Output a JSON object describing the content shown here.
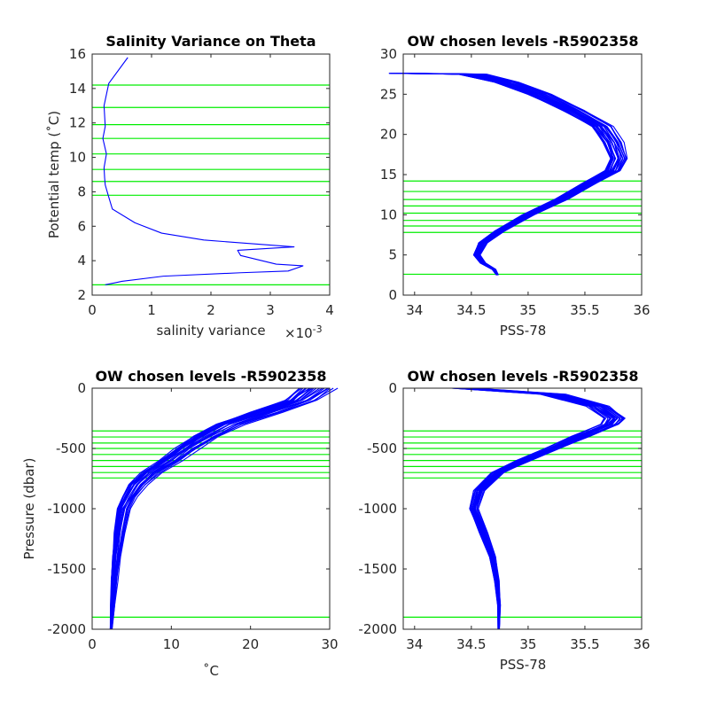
{
  "chart_data": [
    {
      "type": "line",
      "title": "Salinity Variance on Theta",
      "xlabel": "salinity variance",
      "x_exponent_label": "×10",
      "x_exponent": "-3",
      "ylabel": "Potential temp (˚C)",
      "xlim": [
        0,
        0.004
      ],
      "ylim": [
        2,
        16
      ],
      "x_ticks": [
        0,
        0.001,
        0.002,
        0.003,
        0.004
      ],
      "x_tick_labels": [
        "0",
        "1",
        "2",
        "3",
        "4"
      ],
      "y_ticks": [
        2,
        4,
        6,
        8,
        10,
        12,
        14,
        16
      ],
      "y_tick_labels": [
        "2",
        "4",
        "6",
        "8",
        "10",
        "12",
        "14",
        "16"
      ],
      "grid": false,
      "series": [
        {
          "color": "#0000ff",
          "x": [
            0.0006,
            0.00028,
            0.0002,
            0.00022,
            0.00018,
            0.00024,
            0.0002,
            0.00021,
            0.00022,
            0.00027,
            0.00034,
            0.00072,
            0.00117,
            0.00188,
            0.0034,
            0.00245,
            0.0025,
            0.0031,
            0.00355,
            0.0033,
            0.0025,
            0.0012,
            0.0005,
            0.00022
          ],
          "y": [
            15.8,
            14.3,
            13.0,
            11.8,
            11.1,
            10.2,
            9.4,
            8.8,
            8.4,
            7.8,
            7.0,
            6.2,
            5.6,
            5.2,
            4.8,
            4.6,
            4.3,
            3.8,
            3.7,
            3.4,
            3.3,
            3.1,
            2.8,
            2.6
          ]
        }
      ],
      "levels": [
        14.2,
        12.9,
        11.9,
        11.1,
        10.2,
        9.3,
        8.6,
        7.8,
        2.6
      ]
    },
    {
      "type": "line",
      "title": "OW chosen levels -R5902358",
      "xlabel": "PSS-78",
      "ylabel": "",
      "xlim": [
        33.9,
        36.0
      ],
      "ylim": [
        0,
        30
      ],
      "x_ticks": [
        34,
        34.5,
        35,
        35.5,
        36
      ],
      "x_tick_labels": [
        "34",
        "34.5",
        "35",
        "35.5",
        "36"
      ],
      "y_ticks": [
        0,
        5,
        10,
        15,
        20,
        25,
        30
      ],
      "y_tick_labels": [
        "0",
        "5",
        "10",
        "15",
        "20",
        "25",
        "30"
      ],
      "grid": false,
      "series": [
        {
          "color": "#0000ff",
          "x": [
            33.9,
            34.5,
            34.8,
            35.1,
            35.4,
            35.65,
            35.75,
            35.8,
            35.75,
            35.55,
            35.3,
            35.0,
            34.75,
            34.6,
            34.55,
            34.6,
            34.7,
            34.73
          ],
          "y": [
            27.6,
            27.5,
            26.5,
            25.0,
            23.0,
            21.0,
            19.0,
            17.0,
            15.5,
            14.0,
            12.0,
            10.0,
            8.0,
            6.5,
            5.0,
            4.0,
            3.2,
            2.5
          ]
        }
      ],
      "levels": [
        14.2,
        12.9,
        11.9,
        11.1,
        10.2,
        9.3,
        8.6,
        7.8,
        2.6
      ]
    },
    {
      "type": "line",
      "title": "OW chosen levels -R5902358",
      "xlabel": "˚C",
      "ylabel": "Pressure (dbar)",
      "xlim": [
        0,
        30
      ],
      "ylim": [
        -2000,
        0
      ],
      "x_ticks": [
        0,
        10,
        20,
        30
      ],
      "x_tick_labels": [
        "0",
        "10",
        "20",
        "30"
      ],
      "y_ticks": [
        0,
        -500,
        -1000,
        -1500,
        -2000
      ],
      "y_tick_labels": [
        "0",
        "-500",
        "-1000",
        "-1500",
        "-2000"
      ],
      "grid": false,
      "series": [
        {
          "color": "#0000ff",
          "x": [
            28.5,
            26.5,
            22.0,
            17.5,
            14.5,
            12.0,
            10.0,
            7.5,
            5.8,
            4.8,
            4.0,
            3.5,
            3.1,
            2.8,
            2.6,
            2.4
          ],
          "y": [
            0,
            -100,
            -200,
            -300,
            -400,
            -500,
            -600,
            -700,
            -800,
            -900,
            -1000,
            -1200,
            -1400,
            -1600,
            -1800,
            -2000
          ]
        }
      ],
      "levels": [
        -355,
        -405,
        -455,
        -500,
        -550,
        -600,
        -650,
        -700,
        -745,
        -1900
      ]
    },
    {
      "type": "line",
      "title": "OW chosen levels -R5902358",
      "xlabel": "PSS-78",
      "ylabel": "",
      "xlim": [
        33.9,
        36.0
      ],
      "ylim": [
        -2000,
        0
      ],
      "x_ticks": [
        34,
        34.5,
        35,
        35.5,
        36
      ],
      "x_tick_labels": [
        "34",
        "34.5",
        "35",
        "35.5",
        "36"
      ],
      "y_ticks": [
        0,
        -500,
        -1000,
        -1500,
        -2000
      ],
      "y_tick_labels": [
        "0",
        "-500",
        "-1000",
        "-1500",
        "-2000"
      ],
      "grid": false,
      "series": [
        {
          "color": "#0000ff",
          "x": [
            34.4,
            35.2,
            35.6,
            35.75,
            35.7,
            35.45,
            35.2,
            34.95,
            34.72,
            34.56,
            34.52,
            34.6,
            34.68,
            34.72,
            34.74,
            34.74
          ],
          "y": [
            0,
            -50,
            -150,
            -250,
            -300,
            -400,
            -500,
            -600,
            -700,
            -850,
            -1000,
            -1200,
            -1400,
            -1600,
            -1800,
            -2000
          ]
        }
      ],
      "levels": [
        -355,
        -405,
        -455,
        -500,
        -550,
        -600,
        -650,
        -700,
        -745,
        -1900
      ]
    }
  ]
}
